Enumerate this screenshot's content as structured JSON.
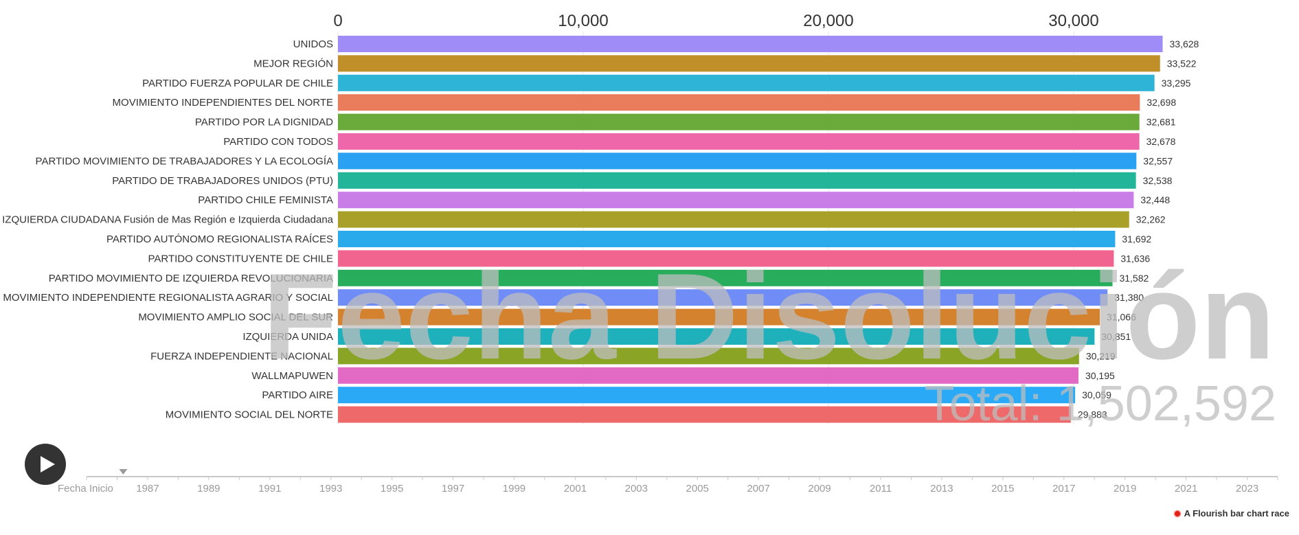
{
  "chart_data": {
    "type": "bar",
    "subtype": "horizontal-bar-race",
    "watermark_label": "Fecha Disolución",
    "total_prefix": "Total: ",
    "total_value": "1,502,592",
    "xaxis": {
      "ticks": [
        "0",
        "10,000",
        "20,000",
        "30,000"
      ],
      "tick_values": [
        0,
        10000,
        20000,
        30000
      ],
      "position": "top",
      "xlim": [
        0,
        33628
      ],
      "grid": true
    },
    "categories": [
      "UNIDOS",
      "MEJOR REGIÓN",
      "PARTIDO FUERZA POPULAR DE CHILE",
      "MOVIMIENTO INDEPENDIENTES DEL NORTE",
      "PARTIDO POR LA DIGNIDAD",
      "PARTIDO CON TODOS",
      "PARTIDO MOVIMIENTO DE TRABAJADORES Y LA ECOLOGÍA",
      "PARTIDO DE TRABAJADORES UNIDOS (PTU)",
      "PARTIDO CHILE FEMINISTA",
      "MAS IZQUIERDA CIUDADANA Fusión de Mas Región e Izquierda Ciudadana",
      "PARTIDO AUTÓNOMO REGIONALISTA RAÍCES",
      "PARTIDO CONSTITUYENTE DE CHILE",
      "PARTIDO MOVIMIENTO DE IZQUIERDA REVOLUCIONARIA",
      "MOVIMIENTO INDEPENDIENTE REGIONALISTA AGRARIO Y SOCIAL",
      "MOVIMIENTO AMPLIO SOCIAL DEL SUR",
      "IZQUIERDA UNIDA",
      "FUERZA INDEPENDIENTE NACIONAL",
      "WALLMAPUWEN",
      "PARTIDO AIRE",
      "MOVIMIENTO SOCIAL DEL NORTE"
    ],
    "values": [
      33628,
      33522,
      33295,
      32698,
      32681,
      32678,
      32557,
      32538,
      32448,
      32262,
      31692,
      31636,
      31582,
      31380,
      31066,
      30851,
      30219,
      30195,
      30059,
      29883
    ],
    "value_labels": [
      "33,628",
      "33,522",
      "33,295",
      "32,698",
      "32,681",
      "32,678",
      "32,557",
      "32,538",
      "32,448",
      "32,262",
      "31,692",
      "31,636",
      "31,582",
      "31,380",
      "31,066",
      "30,851",
      "30,219",
      "30,195",
      "30,059",
      "29,883"
    ],
    "colors": [
      "#a08cf7",
      "#c18f2a",
      "#2db4d6",
      "#e87c5b",
      "#6aaa3b",
      "#ef67ab",
      "#2aa1f2",
      "#22b59a",
      "#c87ee6",
      "#a9a02a",
      "#2aaaeb",
      "#f26490",
      "#27ad5c",
      "#6f8cf7",
      "#d4822e",
      "#1fb1bb",
      "#8aa426",
      "#e36ac4",
      "#2aa9f7",
      "#ee6a6a"
    ],
    "timeline": {
      "start_label": "Fecha Inicio",
      "years": [
        "1987",
        "1989",
        "1991",
        "1993",
        "1995",
        "1997",
        "1999",
        "2001",
        "2003",
        "2005",
        "2007",
        "2009",
        "2011",
        "2013",
        "2015",
        "2017",
        "2019",
        "2021",
        "2023"
      ],
      "year_values": [
        1987,
        1989,
        1991,
        1993,
        1995,
        1997,
        1999,
        2001,
        2003,
        2005,
        2007,
        2009,
        2011,
        2013,
        2015,
        2017,
        2019,
        2021,
        2023
      ],
      "range": [
        1985,
        2024
      ],
      "current_position": 1986.2
    }
  },
  "controls": {
    "play_icon": "play-icon"
  },
  "credit": {
    "text": "A Flourish bar chart race",
    "icon": "flourish-burst-icon"
  }
}
